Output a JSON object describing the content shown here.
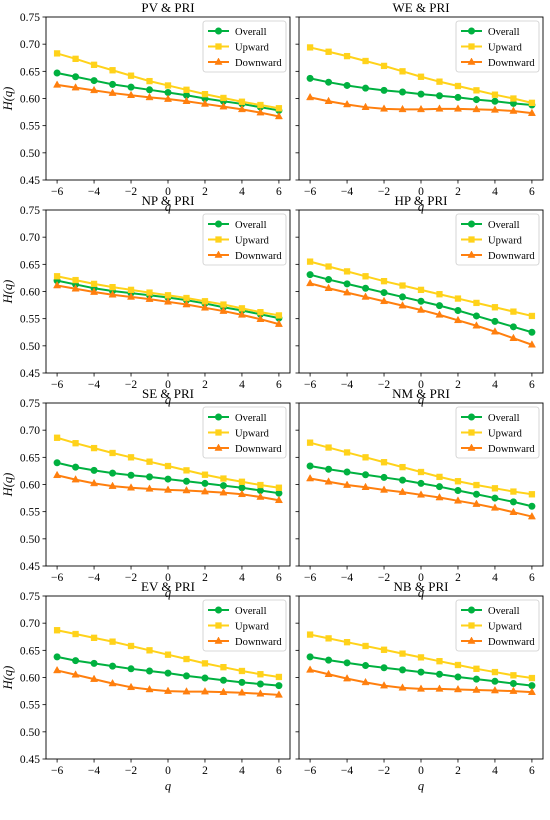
{
  "chart_data": [
    {
      "type": "line",
      "title": "PV & PRI",
      "xlabel": "q",
      "ylabel": "H(q)",
      "xlim": [
        -6.6,
        6.6
      ],
      "ylim": [
        0.45,
        0.75
      ],
      "x_ticks": [
        "−6",
        "−4",
        "−2",
        "0",
        "2",
        "4",
        "6"
      ],
      "y_ticks": [
        "0.45",
        "0.50",
        "0.55",
        "0.60",
        "0.65",
        "0.70",
        "0.75"
      ],
      "legend_position": "upper right",
      "x": [
        -6,
        -5,
        -4,
        -3,
        -2,
        -1,
        0,
        1,
        2,
        3,
        4,
        5,
        6
      ],
      "series": [
        {
          "name": "Overall",
          "color": "#00b140",
          "marker": "circle",
          "values": [
            0.647,
            0.64,
            0.633,
            0.626,
            0.621,
            0.616,
            0.611,
            0.606,
            0.6,
            0.595,
            0.59,
            0.584,
            0.578
          ]
        },
        {
          "name": "Upward",
          "color": "#ffd21a",
          "marker": "square",
          "values": [
            0.683,
            0.673,
            0.662,
            0.652,
            0.642,
            0.632,
            0.624,
            0.616,
            0.608,
            0.601,
            0.594,
            0.588,
            0.582
          ]
        },
        {
          "name": "Downward",
          "color": "#ff7f0e",
          "marker": "triangle",
          "values": [
            0.625,
            0.62,
            0.615,
            0.61,
            0.606,
            0.602,
            0.599,
            0.595,
            0.59,
            0.585,
            0.58,
            0.574,
            0.567
          ]
        }
      ]
    },
    {
      "type": "line",
      "title": "WE & PRI",
      "xlabel": "q",
      "ylabel": "",
      "xlim": [
        -6.6,
        6.6
      ],
      "ylim": [
        0.45,
        0.75
      ],
      "x_ticks": [
        "−6",
        "−4",
        "−2",
        "0",
        "2",
        "4",
        "6"
      ],
      "y_ticks": [],
      "legend_position": "upper right",
      "x": [
        -6,
        -5,
        -4,
        -3,
        -2,
        -1,
        0,
        1,
        2,
        3,
        4,
        5,
        6
      ],
      "series": [
        {
          "name": "Overall",
          "color": "#00b140",
          "marker": "circle",
          "values": [
            0.637,
            0.63,
            0.624,
            0.619,
            0.615,
            0.612,
            0.608,
            0.605,
            0.602,
            0.598,
            0.595,
            0.591,
            0.588
          ]
        },
        {
          "name": "Upward",
          "color": "#ffd21a",
          "marker": "square",
          "values": [
            0.694,
            0.686,
            0.678,
            0.669,
            0.66,
            0.65,
            0.64,
            0.631,
            0.623,
            0.615,
            0.607,
            0.6,
            0.592
          ]
        },
        {
          "name": "Downward",
          "color": "#ff7f0e",
          "marker": "triangle",
          "values": [
            0.602,
            0.595,
            0.589,
            0.584,
            0.581,
            0.58,
            0.58,
            0.581,
            0.581,
            0.58,
            0.579,
            0.577,
            0.573
          ]
        }
      ]
    },
    {
      "type": "line",
      "title": "NP & PRI",
      "xlabel": "q",
      "ylabel": "H(q)",
      "xlim": [
        -6.6,
        6.6
      ],
      "ylim": [
        0.45,
        0.75
      ],
      "x_ticks": [
        "−6",
        "−4",
        "−2",
        "0",
        "2",
        "4",
        "6"
      ],
      "y_ticks": [
        "0.45",
        "0.50",
        "0.55",
        "0.60",
        "0.65",
        "0.70",
        "0.75"
      ],
      "legend_position": "upper right",
      "x": [
        -6,
        -5,
        -4,
        -3,
        -2,
        -1,
        0,
        1,
        2,
        3,
        4,
        5,
        6
      ],
      "series": [
        {
          "name": "Overall",
          "color": "#00b140",
          "marker": "circle",
          "values": [
            0.62,
            0.613,
            0.606,
            0.601,
            0.597,
            0.593,
            0.589,
            0.584,
            0.578,
            0.571,
            0.565,
            0.558,
            0.551
          ]
        },
        {
          "name": "Upward",
          "color": "#ffd21a",
          "marker": "square",
          "values": [
            0.628,
            0.621,
            0.614,
            0.608,
            0.603,
            0.598,
            0.593,
            0.588,
            0.582,
            0.576,
            0.569,
            0.562,
            0.556
          ]
        },
        {
          "name": "Downward",
          "color": "#ff7f0e",
          "marker": "triangle",
          "values": [
            0.611,
            0.605,
            0.599,
            0.594,
            0.59,
            0.586,
            0.581,
            0.576,
            0.57,
            0.564,
            0.557,
            0.549,
            0.54
          ]
        }
      ]
    },
    {
      "type": "line",
      "title": "HP & PRI",
      "xlabel": "q",
      "ylabel": "",
      "xlim": [
        -6.6,
        6.6
      ],
      "ylim": [
        0.45,
        0.75
      ],
      "x_ticks": [
        "−6",
        "−4",
        "−2",
        "0",
        "2",
        "4",
        "6"
      ],
      "y_ticks": [],
      "legend_position": "upper right",
      "x": [
        -6,
        -5,
        -4,
        -3,
        -2,
        -1,
        0,
        1,
        2,
        3,
        4,
        5,
        6
      ],
      "series": [
        {
          "name": "Overall",
          "color": "#00b140",
          "marker": "circle",
          "values": [
            0.631,
            0.622,
            0.614,
            0.606,
            0.598,
            0.59,
            0.582,
            0.574,
            0.565,
            0.555,
            0.545,
            0.535,
            0.525
          ]
        },
        {
          "name": "Upward",
          "color": "#ffd21a",
          "marker": "square",
          "values": [
            0.655,
            0.646,
            0.637,
            0.628,
            0.619,
            0.611,
            0.603,
            0.595,
            0.587,
            0.579,
            0.571,
            0.563,
            0.555
          ]
        },
        {
          "name": "Downward",
          "color": "#ff7f0e",
          "marker": "triangle",
          "values": [
            0.615,
            0.606,
            0.598,
            0.59,
            0.582,
            0.574,
            0.566,
            0.557,
            0.547,
            0.537,
            0.526,
            0.514,
            0.502
          ]
        }
      ]
    },
    {
      "type": "line",
      "title": "SE & PRI",
      "xlabel": "q",
      "ylabel": "H(q)",
      "xlim": [
        -6.6,
        6.6
      ],
      "ylim": [
        0.45,
        0.75
      ],
      "x_ticks": [
        "−6",
        "−4",
        "−2",
        "0",
        "2",
        "4",
        "6"
      ],
      "y_ticks": [
        "0.45",
        "0.50",
        "0.55",
        "0.60",
        "0.65",
        "0.70",
        "0.75"
      ],
      "legend_position": "upper right",
      "x": [
        -6,
        -5,
        -4,
        -3,
        -2,
        -1,
        0,
        1,
        2,
        3,
        4,
        5,
        6
      ],
      "series": [
        {
          "name": "Overall",
          "color": "#00b140",
          "marker": "circle",
          "values": [
            0.64,
            0.632,
            0.626,
            0.621,
            0.617,
            0.614,
            0.61,
            0.606,
            0.602,
            0.598,
            0.594,
            0.589,
            0.584
          ]
        },
        {
          "name": "Upward",
          "color": "#ffd21a",
          "marker": "square",
          "values": [
            0.686,
            0.676,
            0.667,
            0.658,
            0.65,
            0.642,
            0.634,
            0.626,
            0.618,
            0.611,
            0.605,
            0.599,
            0.594
          ]
        },
        {
          "name": "Downward",
          "color": "#ff7f0e",
          "marker": "triangle",
          "values": [
            0.617,
            0.609,
            0.602,
            0.597,
            0.594,
            0.592,
            0.59,
            0.589,
            0.587,
            0.585,
            0.582,
            0.577,
            0.571
          ]
        }
      ]
    },
    {
      "type": "line",
      "title": "NM & PRI",
      "xlabel": "q",
      "ylabel": "",
      "xlim": [
        -6.6,
        6.6
      ],
      "ylim": [
        0.45,
        0.75
      ],
      "x_ticks": [
        "−6",
        "−4",
        "−2",
        "0",
        "2",
        "4",
        "6"
      ],
      "y_ticks": [],
      "legend_position": "upper right",
      "x": [
        -6,
        -5,
        -4,
        -3,
        -2,
        -1,
        0,
        1,
        2,
        3,
        4,
        5,
        6
      ],
      "series": [
        {
          "name": "Overall",
          "color": "#00b140",
          "marker": "circle",
          "values": [
            0.634,
            0.628,
            0.623,
            0.618,
            0.613,
            0.608,
            0.602,
            0.596,
            0.589,
            0.582,
            0.575,
            0.568,
            0.56
          ]
        },
        {
          "name": "Upward",
          "color": "#ffd21a",
          "marker": "square",
          "values": [
            0.677,
            0.668,
            0.659,
            0.65,
            0.641,
            0.632,
            0.623,
            0.614,
            0.606,
            0.599,
            0.593,
            0.587,
            0.582
          ]
        },
        {
          "name": "Downward",
          "color": "#ff7f0e",
          "marker": "triangle",
          "values": [
            0.611,
            0.605,
            0.599,
            0.595,
            0.59,
            0.586,
            0.581,
            0.576,
            0.57,
            0.564,
            0.557,
            0.549,
            0.541
          ]
        }
      ]
    },
    {
      "type": "line",
      "title": "EV & PRI",
      "xlabel": "q",
      "ylabel": "H(q)",
      "xlim": [
        -6.6,
        6.6
      ],
      "ylim": [
        0.45,
        0.75
      ],
      "x_ticks": [
        "−6",
        "−4",
        "−2",
        "0",
        "2",
        "4",
        "6"
      ],
      "y_ticks": [
        "0.45",
        "0.50",
        "0.55",
        "0.60",
        "0.65",
        "0.70",
        "0.75"
      ],
      "legend_position": "upper right",
      "x": [
        -6,
        -5,
        -4,
        -3,
        -2,
        -1,
        0,
        1,
        2,
        3,
        4,
        5,
        6
      ],
      "series": [
        {
          "name": "Overall",
          "color": "#00b140",
          "marker": "circle",
          "values": [
            0.638,
            0.631,
            0.626,
            0.621,
            0.616,
            0.612,
            0.608,
            0.603,
            0.599,
            0.595,
            0.591,
            0.588,
            0.585
          ]
        },
        {
          "name": "Upward",
          "color": "#ffd21a",
          "marker": "square",
          "values": [
            0.687,
            0.68,
            0.673,
            0.666,
            0.658,
            0.65,
            0.642,
            0.634,
            0.626,
            0.619,
            0.612,
            0.606,
            0.601
          ]
        },
        {
          "name": "Downward",
          "color": "#ff7f0e",
          "marker": "triangle",
          "values": [
            0.613,
            0.605,
            0.597,
            0.589,
            0.582,
            0.578,
            0.575,
            0.574,
            0.574,
            0.573,
            0.572,
            0.57,
            0.568
          ]
        }
      ]
    },
    {
      "type": "line",
      "title": "NB & PRI",
      "xlabel": "q",
      "ylabel": "",
      "xlim": [
        -6.6,
        6.6
      ],
      "ylim": [
        0.45,
        0.75
      ],
      "x_ticks": [
        "−6",
        "−4",
        "−2",
        "0",
        "2",
        "4",
        "6"
      ],
      "y_ticks": [],
      "legend_position": "upper right",
      "x": [
        -6,
        -5,
        -4,
        -3,
        -2,
        -1,
        0,
        1,
        2,
        3,
        4,
        5,
        6
      ],
      "series": [
        {
          "name": "Overall",
          "color": "#00b140",
          "marker": "circle",
          "values": [
            0.638,
            0.632,
            0.627,
            0.622,
            0.618,
            0.614,
            0.61,
            0.606,
            0.601,
            0.597,
            0.593,
            0.589,
            0.585
          ]
        },
        {
          "name": "Upward",
          "color": "#ffd21a",
          "marker": "square",
          "values": [
            0.679,
            0.672,
            0.665,
            0.658,
            0.651,
            0.644,
            0.637,
            0.63,
            0.623,
            0.616,
            0.61,
            0.604,
            0.599
          ]
        },
        {
          "name": "Downward",
          "color": "#ff7f0e",
          "marker": "triangle",
          "values": [
            0.614,
            0.606,
            0.598,
            0.591,
            0.585,
            0.581,
            0.579,
            0.579,
            0.578,
            0.577,
            0.576,
            0.575,
            0.573
          ]
        }
      ]
    }
  ]
}
